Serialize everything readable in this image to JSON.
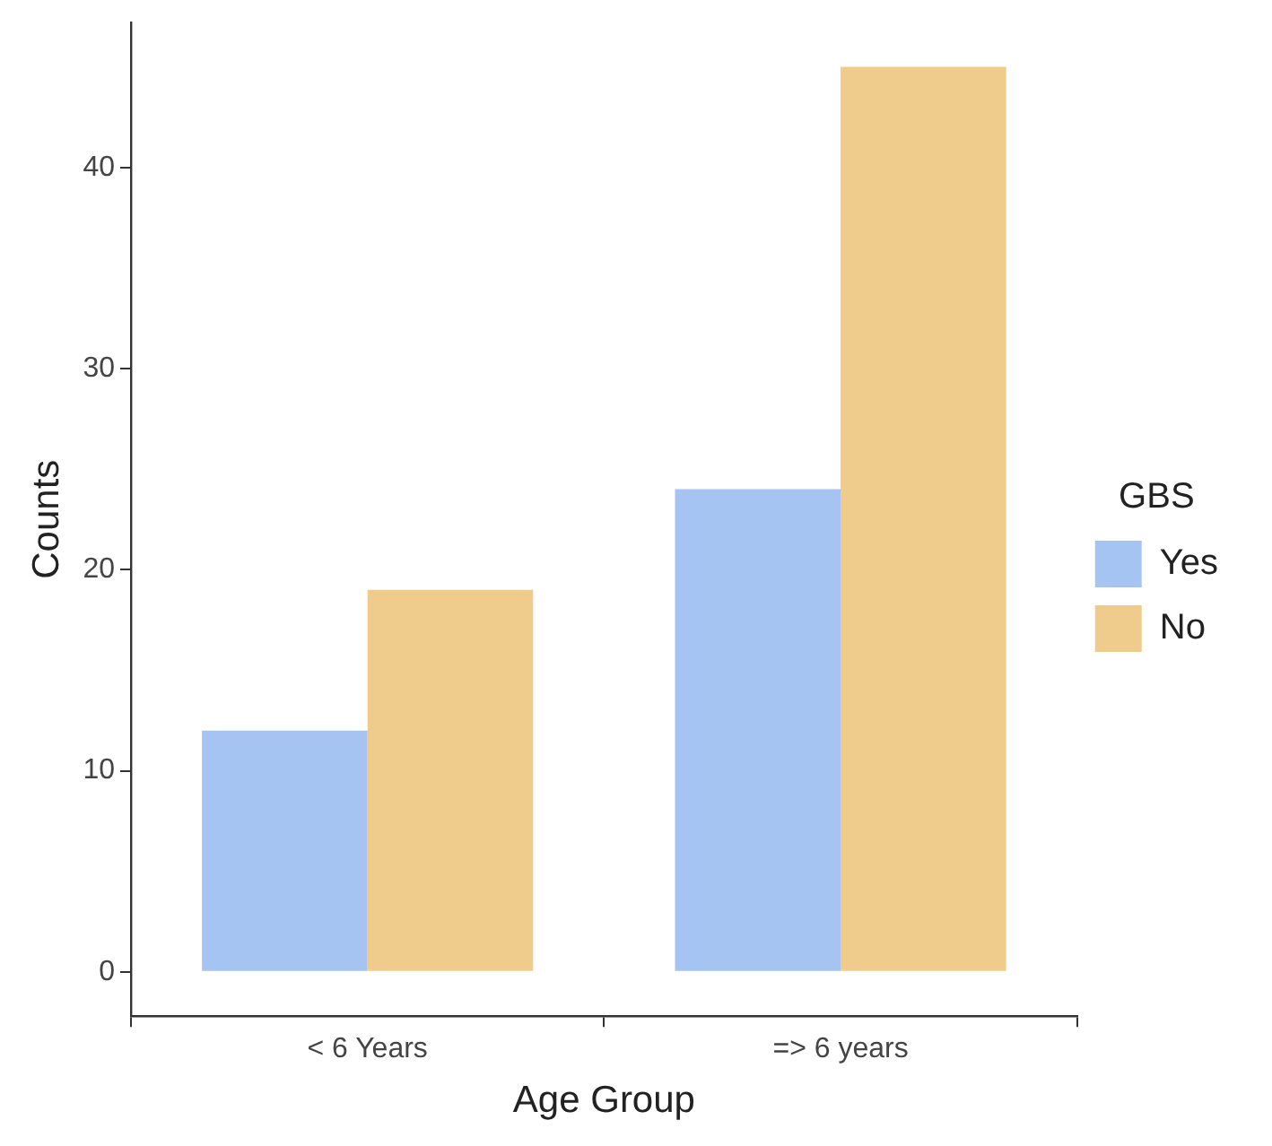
{
  "chart_data": {
    "type": "bar",
    "xlabel": "Age Group",
    "ylabel": "Counts",
    "legend_title": "GBS",
    "categories": [
      "< 6 Years",
      "=> 6 years"
    ],
    "series": [
      {
        "name": "Yes",
        "color": "#a6c4f2",
        "values": [
          12,
          24
        ]
      },
      {
        "name": "No",
        "color": "#f0cc8c",
        "values": [
          19,
          45
        ]
      }
    ],
    "ylim": [
      -2.2,
      47.2
    ],
    "yticks": [
      0,
      10,
      20,
      30,
      40
    ],
    "grid": false,
    "legend": "right"
  }
}
